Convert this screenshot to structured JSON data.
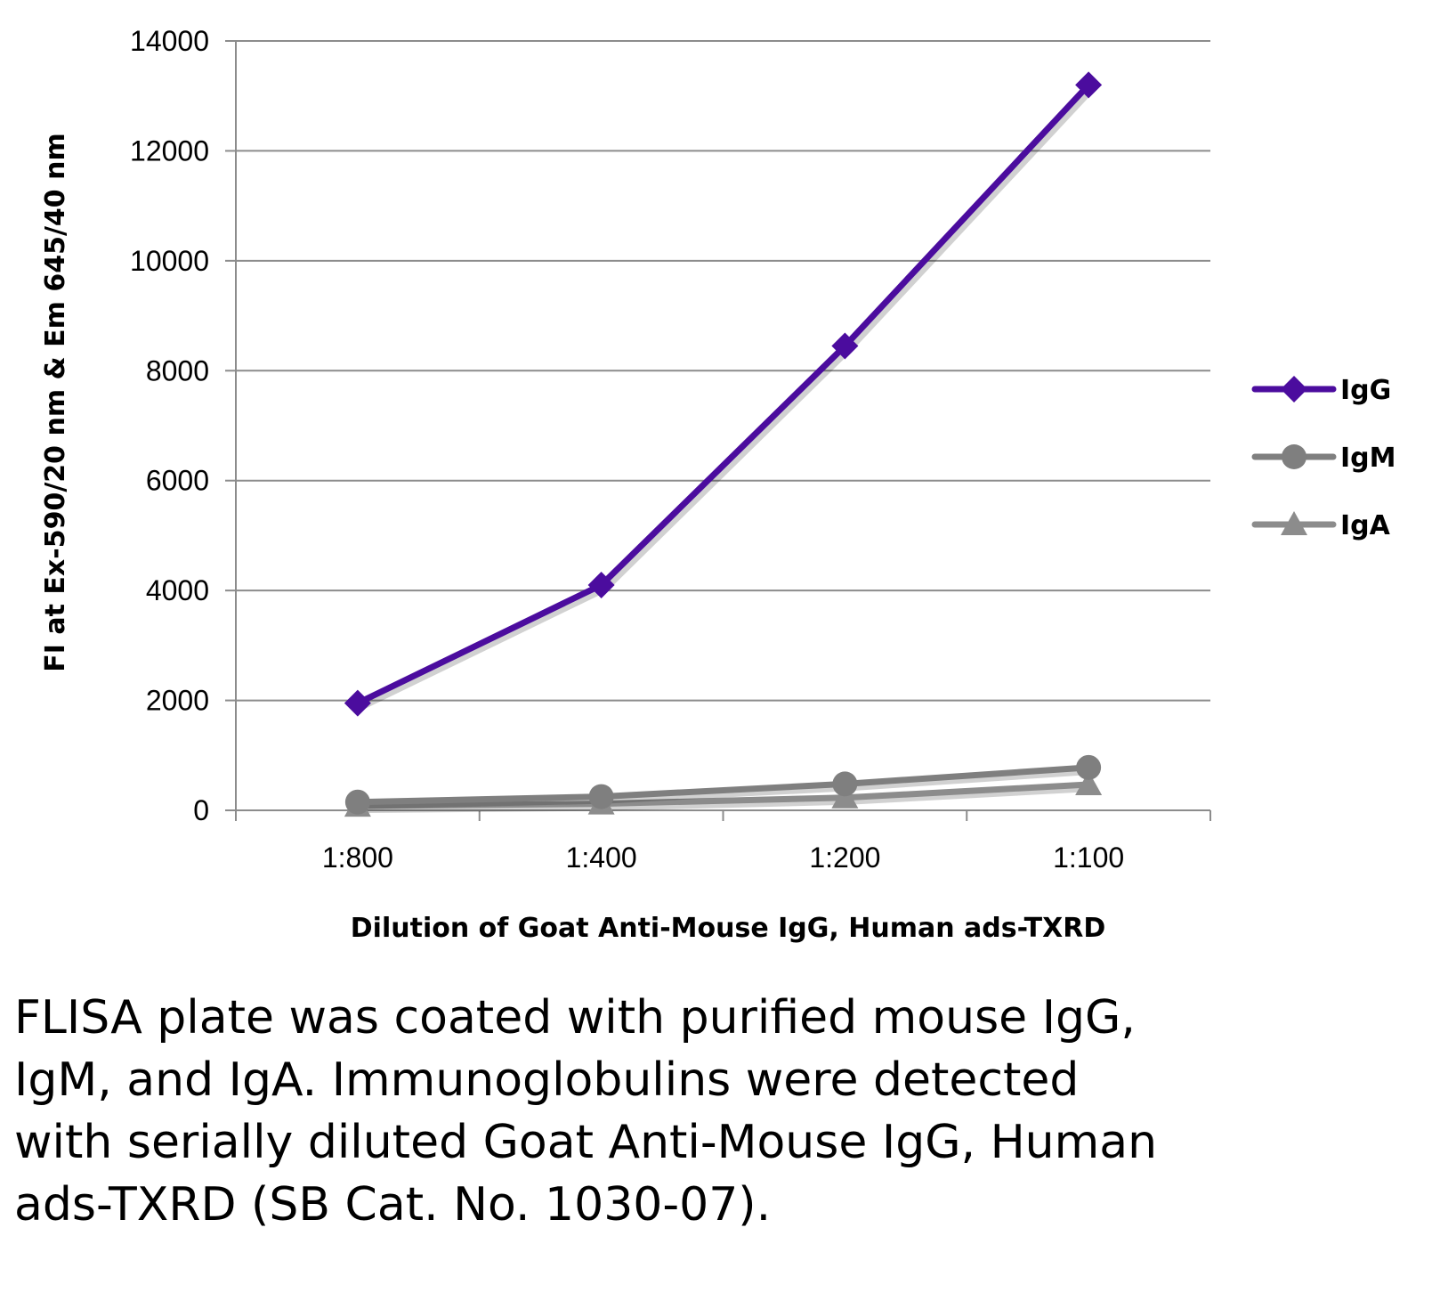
{
  "chart_data": {
    "type": "line",
    "title": "",
    "xlabel": "Dilution of Goat Anti-Mouse IgG, Human ads-TXRD",
    "ylabel": "FI at Ex-590/20 nm & Em 645/40 nm",
    "categories": [
      "1:800",
      "1:400",
      "1:200",
      "1:100"
    ],
    "ylim": [
      0,
      14000
    ],
    "yticks": [
      "0",
      "2000",
      "4000",
      "6000",
      "8000",
      "10000",
      "12000",
      "14000"
    ],
    "grid": true,
    "legend_position": "right",
    "series": [
      {
        "name": "IgG",
        "values": [
          1950,
          4100,
          8450,
          13200
        ],
        "color": "#4B0C9E",
        "marker": "diamond"
      },
      {
        "name": "IgM",
        "values": [
          150,
          250,
          480,
          780
        ],
        "color": "#7F7F7F",
        "marker": "circle"
      },
      {
        "name": "IgA",
        "values": [
          80,
          120,
          230,
          470
        ],
        "color": "#8C8C8C",
        "marker": "triangle"
      }
    ]
  },
  "caption": "FLISA plate was coated with purified mouse IgG, IgM, and IgA.  Immunoglobulins were detected with serially diluted Goat Anti-Mouse IgG, Human ads-TXRD (SB Cat. No. 1030-07)."
}
